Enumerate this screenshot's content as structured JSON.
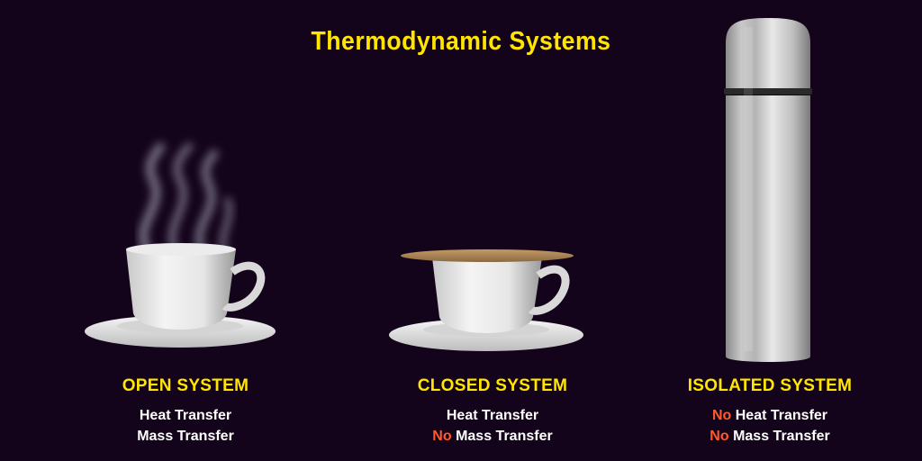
{
  "title": "Thermodynamic Systems",
  "colors": {
    "background": "#14041b",
    "heading": "#ffe500",
    "negation": "#ff5a2a",
    "text": "#ffffff"
  },
  "systems": [
    {
      "name": "OPEN SYSTEM",
      "icon": "steaming-cup-icon",
      "lines": [
        {
          "negation": "",
          "text": "Heat Transfer"
        },
        {
          "negation": "",
          "text": "Mass Transfer"
        }
      ]
    },
    {
      "name": "CLOSED SYSTEM",
      "icon": "covered-cup-icon",
      "lines": [
        {
          "negation": "",
          "text": "Heat Transfer"
        },
        {
          "negation": "No",
          "text": "Mass Transfer"
        }
      ]
    },
    {
      "name": "ISOLATED SYSTEM",
      "icon": "thermos-flask-icon",
      "lines": [
        {
          "negation": "No",
          "text": "Heat Transfer"
        },
        {
          "negation": "No",
          "text": "Mass Transfer"
        }
      ]
    }
  ]
}
